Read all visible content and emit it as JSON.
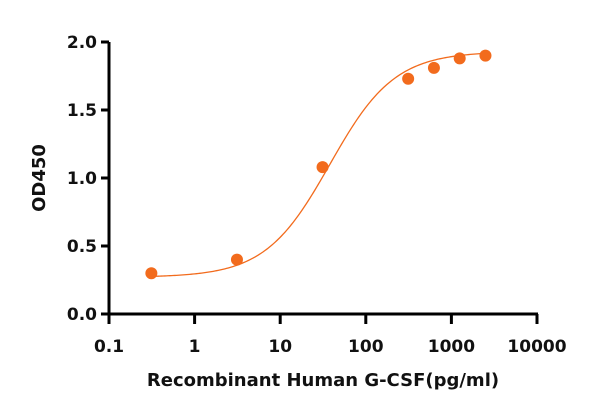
{
  "chart_data": {
    "type": "scatter",
    "title": "",
    "xlabel": "Recombinant Human G-CSF(pg/ml)",
    "ylabel": "OD450",
    "xscale": "log",
    "xlim": [
      0.1,
      10000
    ],
    "ylim": [
      0.0,
      2.0
    ],
    "x_ticks": [
      0.1,
      1,
      10,
      100,
      1000,
      10000
    ],
    "x_tick_labels": [
      "0.1",
      "1",
      "10",
      "100",
      "1000",
      "10000"
    ],
    "y_ticks": [
      0.0,
      0.5,
      1.0,
      1.5,
      2.0
    ],
    "y_tick_labels": [
      "0.0",
      "0.5",
      "1.0",
      "1.5",
      "2.0"
    ],
    "grid": false,
    "legend": null,
    "series": [
      {
        "name": "Recombinant Human G-CSF",
        "color": "#f26b1d",
        "marker": "circle",
        "fit": "4PL sigmoid",
        "x": [
          0.3125,
          3.125,
          31.25,
          312.5,
          625,
          1250,
          2500
        ],
        "values": [
          0.3,
          0.4,
          1.08,
          1.73,
          1.81,
          1.88,
          1.9
        ]
      }
    ]
  },
  "colors": {
    "series": "#f26b1d",
    "axis": "#000000"
  }
}
